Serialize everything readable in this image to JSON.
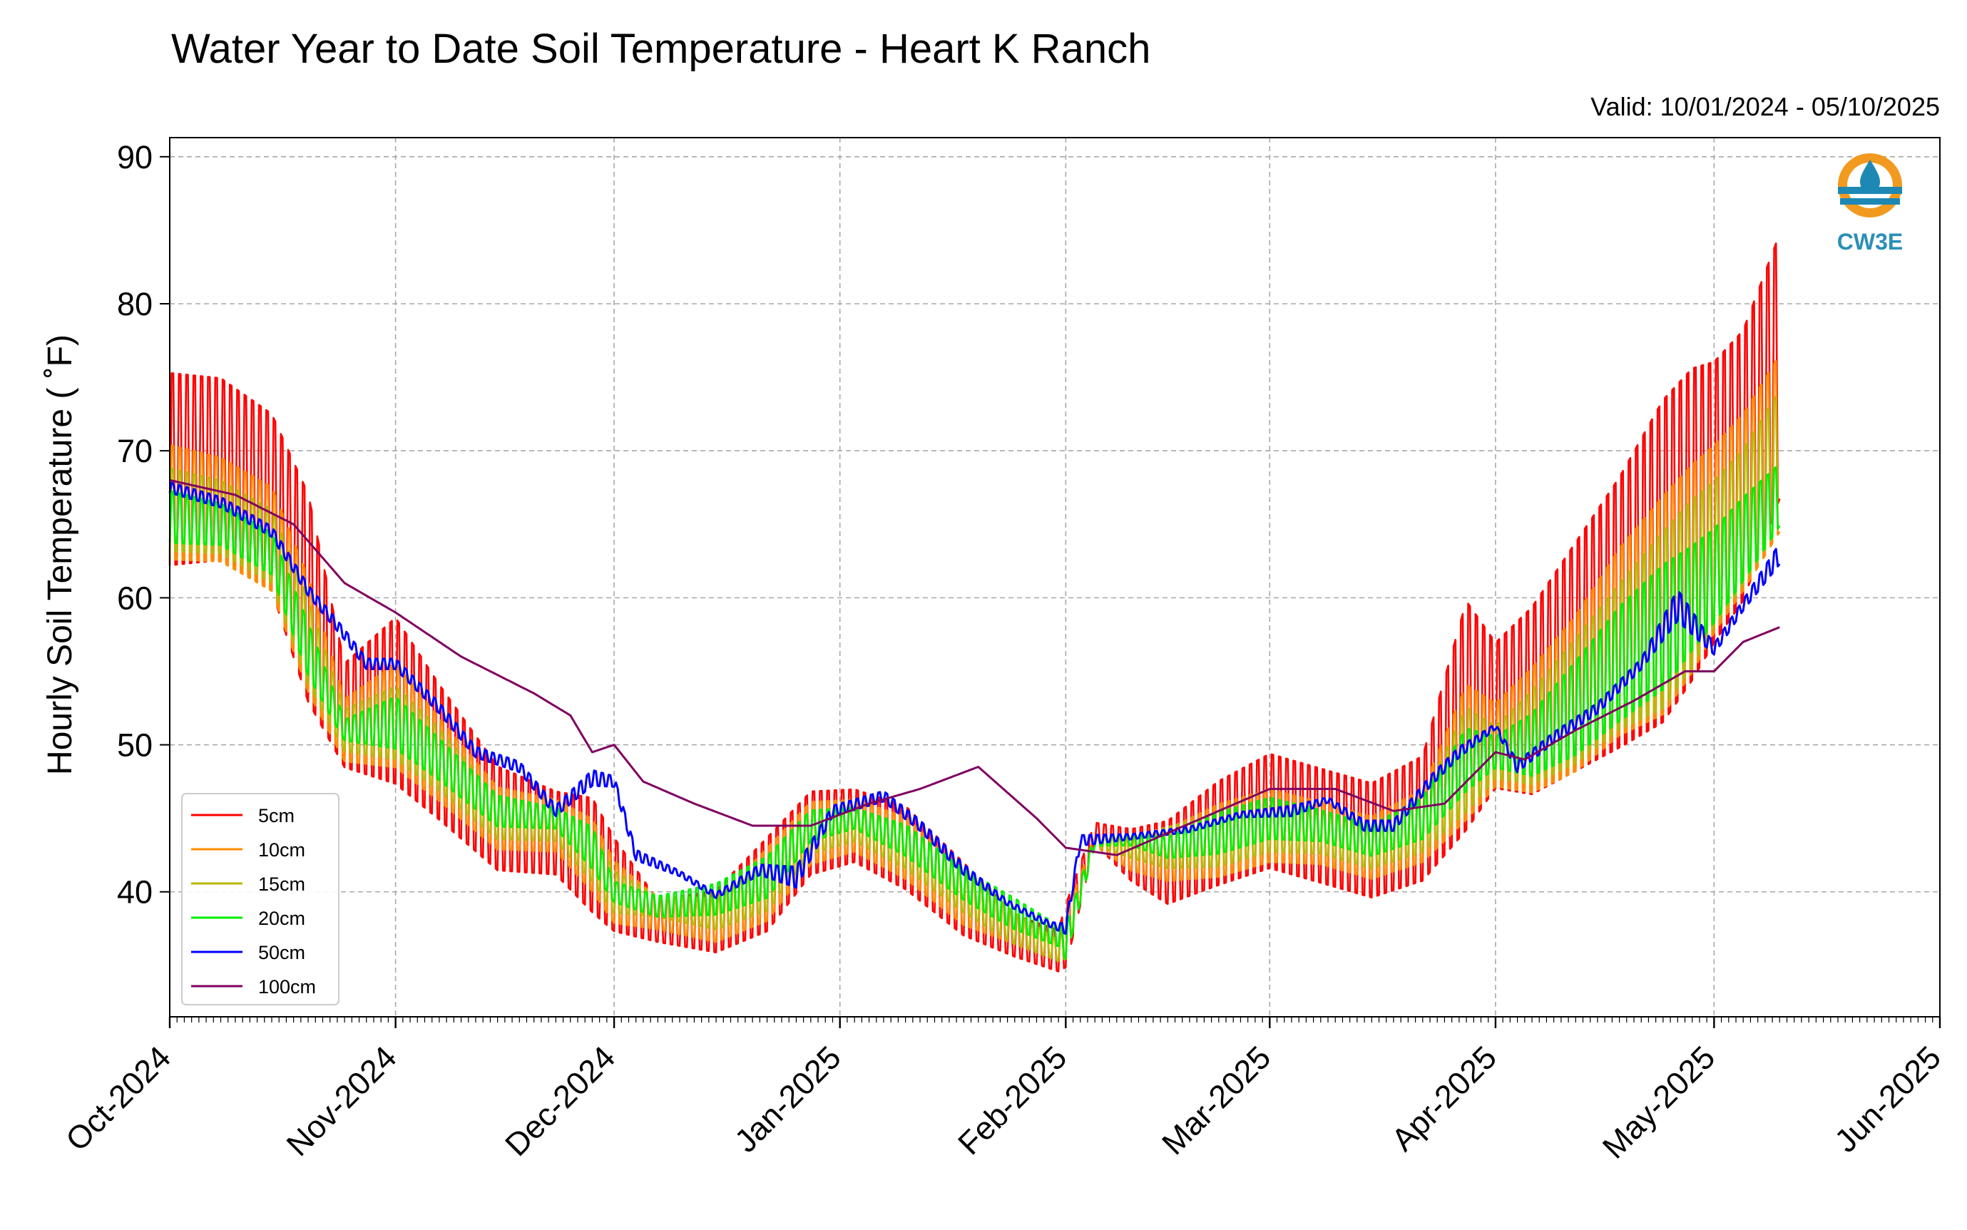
{
  "chart_data": {
    "type": "line",
    "title": "Water Year to Date Soil Temperature - Heart K Ranch",
    "subtitle": "Valid: 10/01/2024 - 05/10/2025",
    "ylabel": "Hourly Soil Temperature ( ˚F)",
    "xlabel": "",
    "ylim": [
      31.5,
      91.3
    ],
    "xlim": [
      "2024-10-01",
      "2025-06-01"
    ],
    "yticks": [
      40,
      50,
      60,
      70,
      80,
      90
    ],
    "xticks": [
      "2024-10-01",
      "2024-11-01",
      "2024-12-01",
      "2025-01-01",
      "2025-02-01",
      "2025-03-01",
      "2025-04-01",
      "2025-05-01",
      "2025-06-01"
    ],
    "xtick_labels": [
      "Oct-2024",
      "Nov-2024",
      "Dec-2024",
      "Jan-2025",
      "Feb-2025",
      "Mar-2025",
      "Apr-2025",
      "May-2025",
      "Jun-2025"
    ],
    "grid": true,
    "legend_position": "lower left",
    "logo_text": "CW3E",
    "diurnal_note": "5cm-20cm series oscillate daily between daily min and max values",
    "series": [
      {
        "name": "5cm",
        "color": "#ff0000",
        "x": [
          "2024-10-01",
          "2024-10-08",
          "2024-10-15",
          "2024-10-20",
          "2024-10-25",
          "2024-11-01",
          "2024-11-07",
          "2024-11-15",
          "2024-11-23",
          "2024-11-28",
          "2024-12-01",
          "2024-12-07",
          "2024-12-15",
          "2024-12-22",
          "2024-12-28",
          "2025-01-03",
          "2025-01-10",
          "2025-01-18",
          "2025-01-25",
          "2025-01-31",
          "2025-02-01",
          "2025-02-05",
          "2025-02-10",
          "2025-02-15",
          "2025-02-22",
          "2025-03-01",
          "2025-03-08",
          "2025-03-15",
          "2025-03-22",
          "2025-03-28",
          "2025-04-01",
          "2025-04-06",
          "2025-04-12",
          "2025-04-18",
          "2025-04-24",
          "2025-04-28",
          "2025-05-01",
          "2025-05-05",
          "2025-05-10"
        ],
        "min": [
          59.5,
          60,
          58,
          50,
          47,
          45,
          43,
          40,
          40,
          37,
          36,
          36,
          35,
          36,
          40,
          41,
          39,
          36,
          35,
          34,
          34,
          43,
          40,
          38,
          39,
          40,
          39,
          38,
          39,
          41,
          45,
          44,
          45,
          46,
          47,
          50,
          53,
          56,
          63
        ],
        "max": [
          78,
          77.5,
          75,
          70,
          57,
          61,
          56,
          50,
          48,
          48,
          45,
          40,
          41,
          45,
          48,
          48,
          47,
          43,
          39,
          38,
          40,
          45,
          45,
          46,
          49,
          51,
          50,
          49,
          51,
          63,
          59,
          62,
          67,
          72,
          78,
          80,
          80,
          82,
          88.5
        ]
      },
      {
        "name": "10cm",
        "color": "#ff8c00",
        "x": [
          "2024-10-01",
          "2024-10-08",
          "2024-10-15",
          "2024-10-20",
          "2024-10-25",
          "2024-11-01",
          "2024-11-07",
          "2024-11-15",
          "2024-11-23",
          "2024-11-28",
          "2024-12-01",
          "2024-12-07",
          "2024-12-15",
          "2024-12-22",
          "2024-12-28",
          "2025-01-03",
          "2025-01-10",
          "2025-01-18",
          "2025-01-25",
          "2025-01-31",
          "2025-02-01",
          "2025-02-05",
          "2025-02-10",
          "2025-02-15",
          "2025-02-22",
          "2025-03-01",
          "2025-03-08",
          "2025-03-15",
          "2025-03-22",
          "2025-03-28",
          "2025-04-01",
          "2025-04-06",
          "2025-04-12",
          "2025-04-18",
          "2025-04-24",
          "2025-04-28",
          "2025-05-01",
          "2025-05-05",
          "2025-05-10"
        ],
        "min": [
          61,
          61,
          59,
          52,
          48,
          47,
          45,
          42,
          42,
          39,
          37,
          37,
          36,
          37,
          41,
          42,
          40,
          37,
          36,
          35,
          35,
          43,
          41,
          40,
          40,
          41,
          41,
          40,
          41,
          43,
          46,
          45,
          46,
          48,
          49,
          52,
          55,
          58,
          62
        ],
        "max": [
          72,
          71,
          69,
          63,
          54,
          57,
          53,
          48,
          47,
          46,
          43,
          40,
          40,
          44,
          47,
          47,
          46,
          42,
          39,
          37,
          39,
          44,
          44,
          45,
          47,
          48,
          47,
          46,
          48,
          56,
          54,
          57,
          61,
          66,
          70,
          72,
          73,
          75,
          79
        ]
      },
      {
        "name": "15cm",
        "color": "#b8b800",
        "x": [
          "2024-10-01",
          "2024-10-08",
          "2024-10-15",
          "2024-10-20",
          "2024-10-25",
          "2024-11-01",
          "2024-11-07",
          "2024-11-15",
          "2024-11-23",
          "2024-11-28",
          "2024-12-01",
          "2024-12-07",
          "2024-12-15",
          "2024-12-22",
          "2024-12-28",
          "2025-01-03",
          "2025-01-10",
          "2025-01-18",
          "2025-01-25",
          "2025-01-31",
          "2025-02-01",
          "2025-02-05",
          "2025-02-10",
          "2025-02-15",
          "2025-02-22",
          "2025-03-01",
          "2025-03-08",
          "2025-03-15",
          "2025-03-22",
          "2025-03-28",
          "2025-04-01",
          "2025-04-06",
          "2025-04-12",
          "2025-04-18",
          "2025-04-24",
          "2025-04-28",
          "2025-05-01",
          "2025-05-05",
          "2025-05-10"
        ],
        "min": [
          62,
          62,
          60,
          53,
          49,
          48,
          46,
          43,
          43,
          40,
          38,
          38,
          37,
          38,
          42,
          43,
          41,
          38,
          36,
          35,
          35,
          43,
          42,
          41,
          41,
          42,
          42,
          41,
          42,
          44,
          47,
          46,
          47,
          49,
          50,
          53,
          56,
          59,
          63
        ],
        "max": [
          70,
          69,
          67,
          61,
          53,
          55,
          52,
          47,
          46,
          45,
          42,
          40,
          40,
          43,
          46,
          46,
          45,
          42,
          39,
          37,
          38,
          44,
          44,
          45,
          46,
          47,
          46,
          45,
          47,
          54,
          52,
          55,
          59,
          63,
          67,
          69,
          70,
          72,
          76
        ]
      },
      {
        "name": "20cm",
        "color": "#00ee00",
        "x": [
          "2024-10-01",
          "2024-10-08",
          "2024-10-15",
          "2024-10-20",
          "2024-10-25",
          "2024-11-01",
          "2024-11-07",
          "2024-11-15",
          "2024-11-23",
          "2024-11-28",
          "2024-12-01",
          "2024-12-07",
          "2024-12-15",
          "2024-12-22",
          "2024-12-28",
          "2025-01-03",
          "2025-01-10",
          "2025-01-18",
          "2025-01-25",
          "2025-01-31",
          "2025-02-01",
          "2025-02-05",
          "2025-02-10",
          "2025-02-15",
          "2025-02-22",
          "2025-03-01",
          "2025-03-08",
          "2025-03-15",
          "2025-03-22",
          "2025-03-28",
          "2025-04-01",
          "2025-04-06",
          "2025-04-12",
          "2025-04-18",
          "2025-04-24",
          "2025-04-28",
          "2025-05-01",
          "2025-05-05",
          "2025-05-10"
        ],
        "min": [
          63,
          63,
          61,
          54,
          50,
          49,
          47,
          44,
          44,
          41,
          39,
          38,
          38,
          39,
          43,
          44,
          42,
          39,
          37,
          36,
          35,
          43,
          43,
          42,
          42,
          43,
          43,
          42,
          43,
          46,
          48,
          47,
          48,
          50,
          52,
          55,
          57,
          60,
          64
        ],
        "max": [
          68,
          67,
          65,
          59,
          52,
          54,
          51,
          47,
          46,
          45,
          41,
          40,
          41,
          43,
          46,
          46,
          45,
          42,
          40,
          38,
          38,
          44,
          44,
          44,
          46,
          47,
          46,
          45,
          47,
          52,
          51,
          53,
          57,
          61,
          64,
          65,
          66,
          68,
          70
        ]
      },
      {
        "name": "50cm",
        "color": "#0000ff",
        "x": [
          "2024-10-01",
          "2024-10-08",
          "2024-10-15",
          "2024-10-20",
          "2024-10-25",
          "2024-10-28",
          "2024-11-01",
          "2024-11-07",
          "2024-11-12",
          "2024-11-18",
          "2024-11-23",
          "2024-11-28",
          "2024-12-01",
          "2024-12-04",
          "2024-12-10",
          "2024-12-15",
          "2024-12-21",
          "2024-12-26",
          "2024-12-31",
          "2025-01-07",
          "2025-01-12",
          "2025-01-18",
          "2025-01-24",
          "2025-01-30",
          "2025-02-01",
          "2025-02-03",
          "2025-02-10",
          "2025-02-18",
          "2025-02-25",
          "2025-03-04",
          "2025-03-09",
          "2025-03-14",
          "2025-03-18",
          "2025-03-23",
          "2025-03-27",
          "2025-04-01",
          "2025-04-04",
          "2025-04-09",
          "2025-04-15",
          "2025-04-21",
          "2025-04-26",
          "2025-05-01",
          "2025-05-05",
          "2025-05-10"
        ],
        "min": [
          67,
          66,
          64,
          60,
          57,
          55,
          55,
          52,
          49,
          48,
          45,
          47,
          47,
          42,
          41,
          39.5,
          41,
          40,
          45,
          46,
          44,
          41,
          39,
          37.5,
          37,
          43,
          43.5,
          44,
          45,
          45,
          46,
          44,
          44,
          47,
          49,
          51,
          48,
          50,
          52,
          55,
          58,
          56,
          59,
          62
        ],
        "max": [
          68,
          67,
          65,
          61,
          58,
          56,
          56,
          53,
          50,
          49,
          46,
          48.5,
          48,
          43,
          41.5,
          40,
          42,
          42,
          46,
          47,
          45,
          42,
          39.5,
          38,
          38,
          44,
          44,
          44.5,
          45.5,
          46,
          46.5,
          45,
          45,
          48,
          50,
          51.5,
          49,
          51,
          53,
          56,
          61,
          57,
          60,
          64
        ]
      },
      {
        "name": "100cm",
        "color": "#800060",
        "x": [
          "2024-10-01",
          "2024-10-10",
          "2024-10-18",
          "2024-10-25",
          "2024-11-01",
          "2024-11-10",
          "2024-11-20",
          "2024-11-25",
          "2024-11-28",
          "2024-12-01",
          "2024-12-05",
          "2024-12-12",
          "2024-12-20",
          "2024-12-28",
          "2025-01-05",
          "2025-01-12",
          "2025-01-20",
          "2025-01-28",
          "2025-02-01",
          "2025-02-08",
          "2025-02-15",
          "2025-02-22",
          "2025-03-01",
          "2025-03-10",
          "2025-03-18",
          "2025-03-25",
          "2025-04-01",
          "2025-04-05",
          "2025-04-12",
          "2025-04-20",
          "2025-04-27",
          "2025-05-01",
          "2025-05-05",
          "2025-05-10"
        ],
        "min": [
          68,
          67,
          65,
          61,
          59,
          56,
          53.5,
          52,
          49.5,
          50,
          47.5,
          46,
          44.5,
          44.5,
          46,
          47,
          48.5,
          45,
          43,
          42.5,
          44,
          45.5,
          47,
          47,
          45.5,
          46,
          49.5,
          49,
          51,
          53,
          55,
          55,
          57,
          58
        ],
        "max": [
          68,
          67,
          65,
          61,
          59,
          56,
          53.5,
          52,
          49.5,
          50,
          47.5,
          46,
          44.5,
          44.5,
          46,
          47,
          48.5,
          45,
          43,
          42.5,
          44,
          45.5,
          47,
          47,
          45.5,
          46,
          49.5,
          49,
          51,
          53,
          55,
          55,
          57,
          58
        ]
      }
    ]
  }
}
